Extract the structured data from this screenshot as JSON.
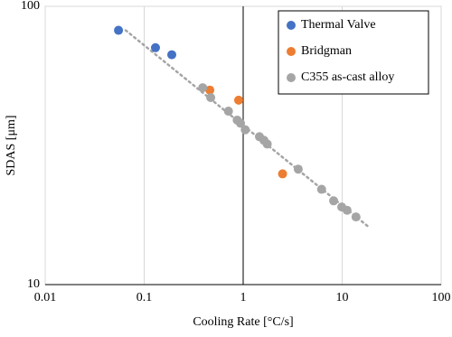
{
  "chart_data": {
    "type": "scatter",
    "xlabel": "Cooling Rate [°C/s]",
    "ylabel": "SDAS [μm]",
    "xscale": "log",
    "yscale": "log",
    "xlim": [
      0.01,
      100
    ],
    "ylim": [
      10,
      100
    ],
    "xticks": [
      0.01,
      0.1,
      1,
      10,
      100
    ],
    "yticks": [
      10,
      100
    ],
    "y_axis_crosses": 1,
    "grid": true,
    "legend": "upper right",
    "series": [
      {
        "name": "Thermal Valve",
        "color": "#4472c4",
        "x": [
          0.055,
          0.13,
          0.19
        ],
        "values": [
          82,
          71,
          67
        ]
      },
      {
        "name": "Bridgman",
        "color": "#ed7d31",
        "x": [
          0.46,
          0.9,
          2.5
        ],
        "values": [
          50,
          46,
          25
        ]
      },
      {
        "name": "C355 as-cast alloy",
        "color": "#a5a5a5",
        "x": [
          0.39,
          0.47,
          0.71,
          0.87,
          0.94,
          1.05,
          1.46,
          1.62,
          1.75,
          3.6,
          6.2,
          8.2,
          9.9,
          11.2,
          13.8
        ],
        "values": [
          51,
          47,
          42,
          39,
          38,
          36,
          34,
          33,
          32,
          26,
          22,
          20,
          19,
          18.5,
          17.5
        ]
      }
    ],
    "trendline": {
      "color": "#a5a5a5",
      "x": [
        0.065,
        19
      ],
      "values": [
        82,
        16
      ]
    }
  }
}
